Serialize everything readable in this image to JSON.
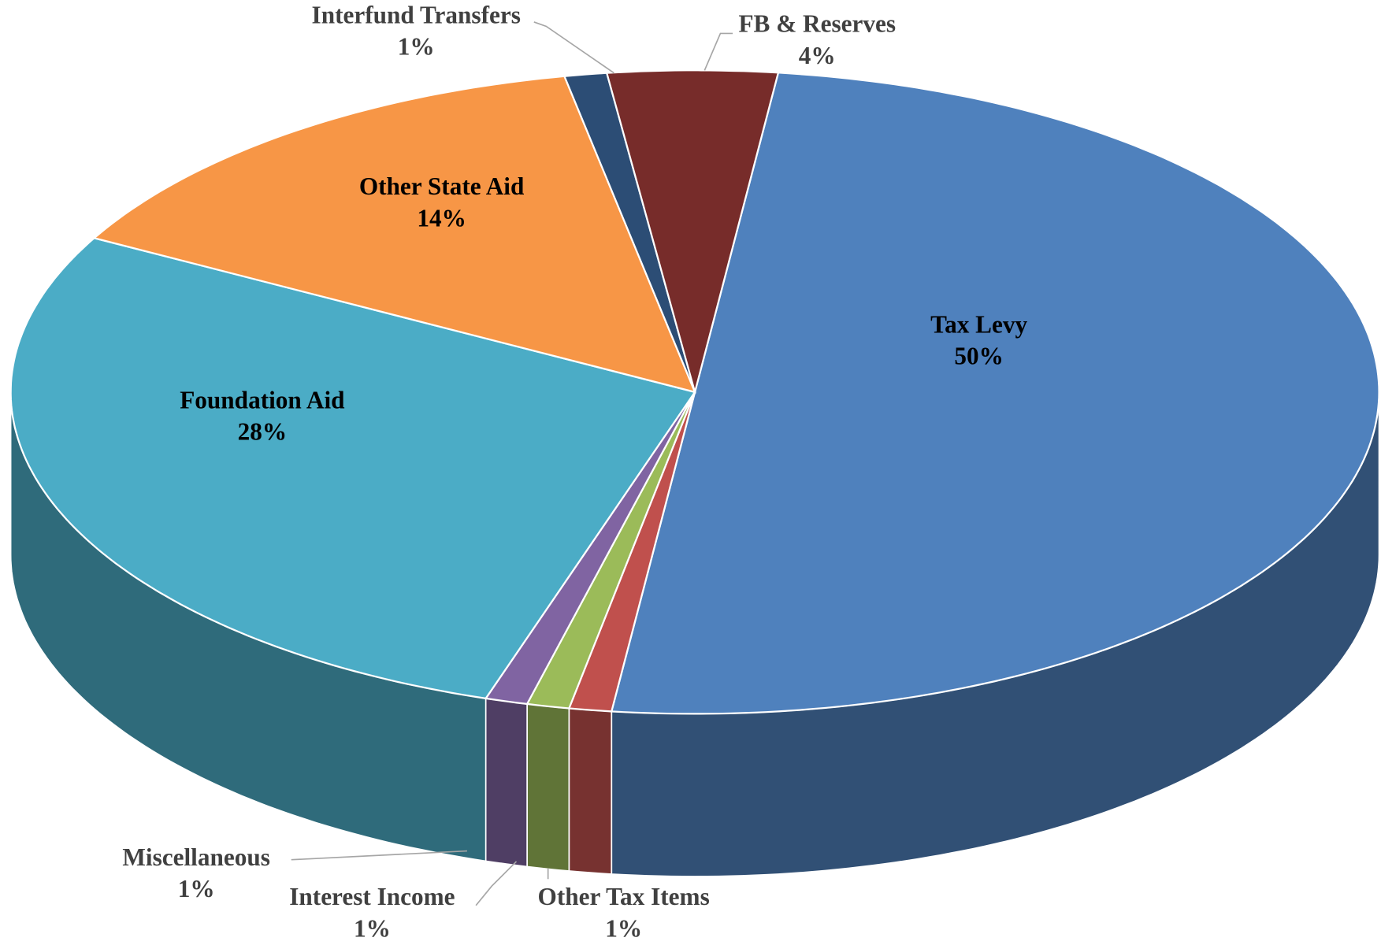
{
  "chart_data": {
    "type": "pie3d",
    "categories": [
      "Tax Levy",
      "Other Tax Items",
      "Interest Income",
      "Miscellaneous",
      "Foundation Aid",
      "Other State Aid",
      "Interfund Transfers",
      "FB & Reserves"
    ],
    "values": [
      50,
      1,
      1,
      1,
      28,
      14,
      1,
      4
    ],
    "value_labels": [
      "50%",
      "1%",
      "1%",
      "1%",
      "28%",
      "14%",
      "1%",
      "4%"
    ],
    "colors": [
      "#4f81bd",
      "#c0504d",
      "#9bbb59",
      "#8064a2",
      "#4bacc6",
      "#f79646",
      "#2c4d75",
      "#772c2a"
    ]
  }
}
